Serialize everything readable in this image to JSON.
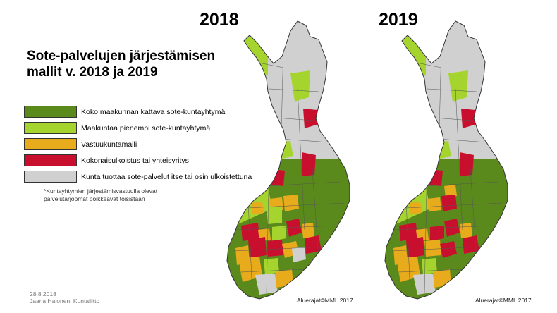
{
  "title": "Sote-palvelujen järjestämisen mallit v. 2018 ja 2019",
  "colors": {
    "dark_green": "#5b8a1c",
    "light_green": "#a6d42f",
    "orange": "#e8ab1c",
    "red": "#c8102e",
    "gray": "#d0d0d0"
  },
  "legend": [
    {
      "label": "Koko maakunnan kattava sote-kuntayhtymä",
      "color": "#5b8a1c"
    },
    {
      "label": "Maakuntaa pienempi sote-kuntayhtymä",
      "color": "#a6d42f"
    },
    {
      "label": "Vastuukuntamalli",
      "color": "#e8ab1c"
    },
    {
      "label": "Kokonaisulkoistus tai yhteisyritys",
      "color": "#c8102e"
    },
    {
      "label": "Kunta tuottaa sote-palvelut itse tai osin ulkoistettuna",
      "color": "#d0d0d0"
    }
  ],
  "footnote": "*Kuntayhtymien järjestämisvastuulla olevat palvelutarjoomat poikkeavat toisistaan",
  "date": "28.8.2018",
  "author": "Jaana Halonen, Kuntaliitto",
  "maps": [
    {
      "year": "2018",
      "attribution": "Aluerajat©MML 2017"
    },
    {
      "year": "2019",
      "attribution": "Aluerajat©MML 2017"
    }
  ]
}
